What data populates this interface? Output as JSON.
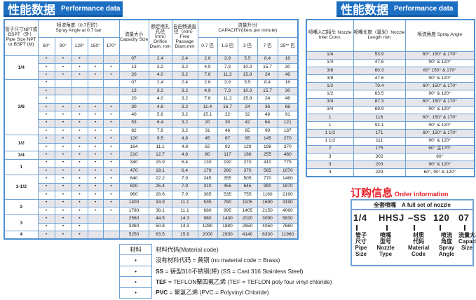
{
  "banner": {
    "zh": "性能数据",
    "en": "Performance data"
  },
  "perf": {
    "headers": {
      "pipe": "管子尺寸NPT或BSPT（外）Pipe Size NPT or BSPT (M)",
      "angle_zh": "喷流角度（0.7巴时）",
      "angle_en": "Spray Angle at 0.7 bar",
      "angles": [
        "60°",
        "90°",
        "120°",
        "150°",
        "170°"
      ],
      "capacity": "流量大小 Capacity Size",
      "orifice": "额定喷孔孔径（mm）Orifice Diam. mm",
      "free": "自由畅通直径（mm）Free Passage Diam.mm",
      "flow_zh": "流量升/分",
      "flow_en": "CAPACITY(liters per minute)",
      "pressures": [
        "0.7 巴",
        "1.5 巴",
        "3 巴",
        "7 巴",
        "25** 巴"
      ]
    },
    "dot": "•",
    "groups": [
      {
        "pipe": "1/4",
        "rows": [
          {
            "dots": [
              1,
              1,
              1,
              0,
              0
            ],
            "v": [
              "07",
              "2.4",
              "2.4",
              "2.6",
              "3.9",
              "5.5",
              "8.4",
              "16"
            ]
          },
          {
            "dots": [
              1,
              1,
              1,
              1,
              1
            ],
            "v": [
              "13",
              "3.2",
              "3.2",
              "4.9",
              "7.3",
              "10.3",
              "15.7",
              "30"
            ]
          },
          {
            "dots": [
              1,
              1,
              1,
              1,
              1
            ],
            "v": [
              "20",
              "4.0",
              "3.2",
              "7.6",
              "11.2",
              "15.8",
              "24",
              "46"
            ]
          }
        ]
      },
      {
        "pipe": "3/8",
        "rows": [
          {
            "dots": [
              1,
              0,
              0,
              0,
              0
            ],
            "v": [
              "07",
              "2.4",
              "2.4",
              "2.6",
              "3.9",
              "5.5",
              "8.4",
              "16"
            ]
          },
          {
            "dots": [
              1,
              0,
              0,
              0,
              0
            ],
            "v": [
              "13",
              "3.2",
              "3.2",
              "4.9",
              "7.3",
              "10.3",
              "15.7",
              "30"
            ]
          },
          {
            "dots": [
              1,
              0,
              0,
              0,
              0
            ],
            "v": [
              "20",
              "4.0",
              "3.2",
              "7.6",
              "11.2",
              "15.8",
              "24",
              "46"
            ]
          },
          {
            "dots": [
              1,
              1,
              1,
              1,
              1
            ],
            "v": [
              "30",
              "4.8",
              "3.2",
              "11.4",
              "16.7",
              "24",
              "36",
              "68"
            ]
          },
          {
            "dots": [
              1,
              1,
              1,
              1,
              1
            ],
            "v": [
              "40",
              "5.6",
              "3.2",
              "15.1",
              "22",
              "32",
              "48",
              "91"
            ]
          },
          {
            "dots": [
              1,
              1,
              1,
              1,
              1
            ],
            "v": [
              "53",
              "6.4",
              "3.2",
              "20",
              "30",
              "42",
              "64",
              "121"
            ]
          },
          {
            "dots": [
              1,
              1,
              1,
              1,
              1
            ],
            "v": [
              "82",
              "7.9",
              "3.2",
              "31",
              "46",
              "65",
              "99",
              "187"
            ]
          }
        ]
      },
      {
        "pipe": "1/2",
        "rows": [
          {
            "dots": [
              1,
              1,
              1,
              1,
              1
            ],
            "v": [
              "120",
              "9.5",
              "4.8",
              "45",
              "67",
              "95",
              "145",
              "270"
            ]
          },
          {
            "dots": [
              1,
              1,
              1,
              1,
              1
            ],
            "v": [
              "164",
              "11.1",
              "4.8",
              "62",
              "92",
              "129",
              "198",
              "370"
            ]
          }
        ]
      },
      {
        "pipe": "3/4",
        "rows": [
          {
            "dots": [
              1,
              1,
              1,
              1,
              1
            ],
            "v": [
              "210",
              "12.7",
              "4.8",
              "80",
              "117",
              "166",
              "255",
              "480"
            ]
          }
        ]
      },
      {
        "pipe": "1",
        "rows": [
          {
            "dots": [
              1,
              1,
              1,
              1,
              1
            ],
            "v": [
              "340",
              "15.9",
              "6.4",
              "130",
              "190",
              "270",
              "410",
              "775"
            ]
          },
          {
            "dots": [
              1,
              1,
              1,
              1,
              1
            ],
            "v": [
              "470",
              "19.1",
              "6.4",
              "179",
              "260",
              "370",
              "565",
              "1070"
            ]
          }
        ]
      },
      {
        "pipe": "1-1/2",
        "rows": [
          {
            "dots": [
              1,
              1,
              1,
              1,
              1
            ],
            "v": [
              "640",
              "22.2",
              "7.9",
              "245",
              "355",
              "505",
              "770",
              "1460"
            ]
          },
          {
            "dots": [
              1,
              1,
              1,
              1,
              1
            ],
            "v": [
              "820",
              "25.4",
              "7.9",
              "310",
              "455",
              "645",
              "990",
              "1870"
            ]
          },
          {
            "dots": [
              1,
              1,
              1,
              1,
              1
            ],
            "v": [
              "960",
              "28.6",
              "7.9",
              "365",
              "535",
              "755",
              "1160",
              "2190"
            ]
          }
        ]
      },
      {
        "pipe": "2",
        "rows": [
          {
            "dots": [
              1,
              1,
              1,
              1,
              1
            ],
            "v": [
              "1400",
              "34.9",
              "11.1",
              "535",
              "780",
              "1105",
              "1690",
              "3190"
            ]
          },
          {
            "dots": [
              1,
              1,
              1,
              1,
              1
            ],
            "v": [
              "1780",
              "38.1",
              "11.1",
              "680",
              "995",
              "1405",
              "2150",
              "4060"
            ]
          }
        ]
      },
      {
        "pipe": "3",
        "rows": [
          {
            "dots": [
              1,
              1,
              1,
              0,
              0
            ],
            "v": [
              "2560",
              "44.5",
              "14.3",
              "980",
              "1430",
              "2020",
              "3090",
              "5830"
            ]
          },
          {
            "dots": [
              1,
              1,
              1,
              0,
              0
            ],
            "v": [
              "3360",
              "50.8",
              "14.3",
              "1280",
              "1880",
              "2650",
              "4050",
              "7660"
            ]
          }
        ]
      },
      {
        "pipe": "4",
        "rows": [
          {
            "dots": [
              1,
              1,
              1,
              0,
              0
            ],
            "v": [
              "5250",
              "63.5",
              "15.9",
              "2000",
              "2930",
              "4140",
              "6330",
              "11960"
            ]
          }
        ]
      }
    ]
  },
  "inlet": {
    "headers": [
      "喷嘴入口接头 Nozzle Inlet Conn.",
      "喷嘴长度（毫米）Nozzle Length mm",
      "喷流角度 Spray Angle"
    ],
    "rows": [
      [
        "1/4",
        "53.9",
        "60°, 150° & 170°"
      ],
      [
        "1/4",
        "47.6",
        "90° & 120°"
      ],
      [
        "3/8",
        "60.3",
        "60° 150° & 170°"
      ],
      [
        "3/8",
        "47.6",
        "90° & 120°"
      ],
      [
        "1/2",
        "79.4",
        "60°, 150° & 170°"
      ],
      [
        "1/2",
        "63.5",
        "90° & 120°"
      ],
      [
        "3/4",
        "87.3",
        "60°, 150° & 170°"
      ],
      [
        "3/4",
        "69.9",
        "90° & 120°"
      ],
      [
        "1",
        "116",
        "60°, 150° & 170°"
      ],
      [
        "1",
        "92.1",
        "90° & 120°"
      ],
      [
        "1 1/2",
        "171",
        "60°, 150° & 170°"
      ],
      [
        "1 1/2",
        "111",
        "90° & 120°"
      ],
      [
        "2",
        "175",
        "60° 至170°"
      ],
      [
        "3",
        "302",
        "60°"
      ],
      [
        "3",
        "203",
        "90° & 120°"
      ],
      [
        "4",
        "229",
        "60°, 90° & 120°"
      ]
    ]
  },
  "order": {
    "title_zh": "订购信息",
    "title_en": "Order information",
    "head_zh": "全套喷嘴",
    "head_en": "A full set of nozzle",
    "parts": [
      {
        "code": "1/4",
        "label": "管子\n尺寸\nPipe\nSize"
      },
      {
        "code": "HHSJ",
        "label": "喷嘴\n型号\nNozzle\nType"
      },
      {
        "code": "–SS",
        "label": "材质\n代码\nMaterial\nCode"
      },
      {
        "code": "120",
        "label": "喷流\n角度\nSpray\nAngle"
      },
      {
        "code": "07",
        "label": "流量大小\nCapacity\nSize"
      }
    ]
  },
  "material": {
    "head": [
      "材料",
      "材料代码(Material code)"
    ],
    "rows": [
      {
        "bold": "",
        "text": "没有材料代码 = 黄铜  (no material code = Brass)"
      },
      {
        "bold": "SS",
        "text": " = 铸型316不锈钢(棒) (SS = Cast 316 Stainless Steel)"
      },
      {
        "bold": "TEF",
        "text": " = TEFLON聚四氟乙烯 (TEF = TEFLON poly four vinyl chloride)"
      },
      {
        "bold": "PVC",
        "text": " = 聚氯乙烯 (PVC = Polyvinyl Chloride)"
      }
    ]
  },
  "colors": {
    "banner": "#1b6ec2",
    "border": "#6fa2d6",
    "order_title": "#e8212a",
    "row_shade": "#e6e6ea"
  }
}
